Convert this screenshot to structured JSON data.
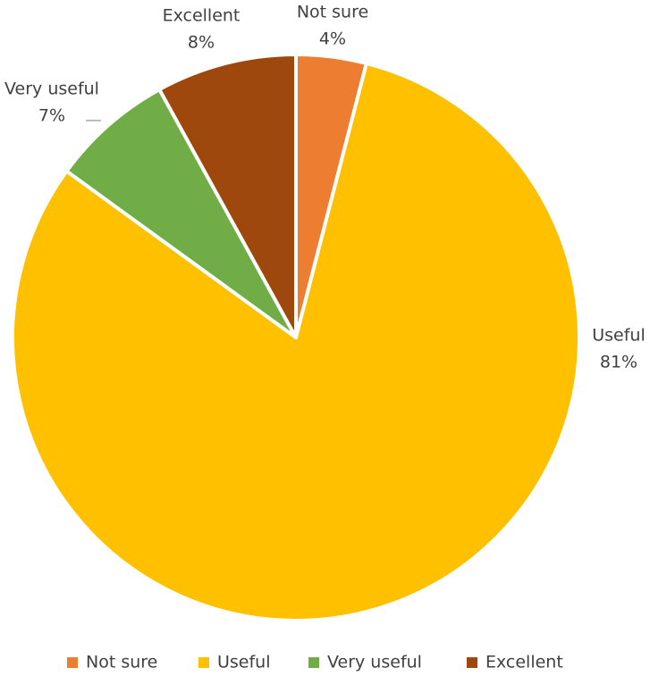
{
  "chart_data": {
    "type": "pie",
    "categories": [
      "Not sure",
      "Useful",
      "Very useful",
      "Excellent"
    ],
    "values": [
      4,
      81,
      7,
      8
    ],
    "value_labels": [
      "4%",
      "81%",
      "7%",
      "8%"
    ],
    "colors": [
      "#ED7D31",
      "#FFC000",
      "#70AD47",
      "#9E480E"
    ],
    "legend": "bottom"
  }
}
